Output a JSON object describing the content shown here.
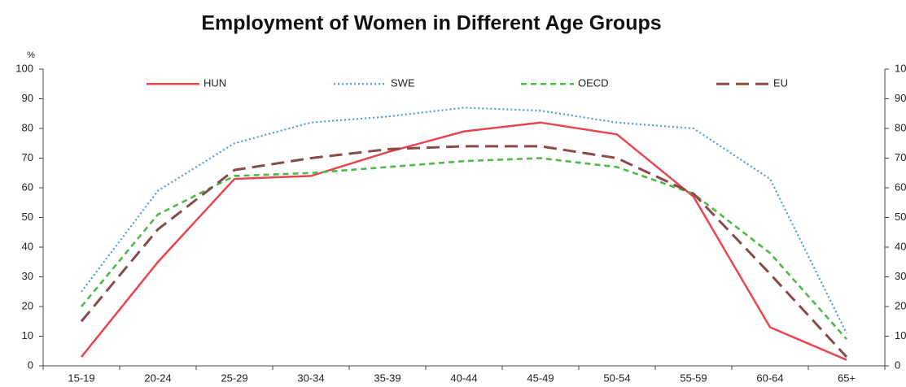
{
  "chart_data": {
    "type": "line",
    "title": "Employment of Women in Different Age Groups",
    "ylabel": "%",
    "categories": [
      "15-19",
      "20-24",
      "25-29",
      "30-34",
      "35-39",
      "40-44",
      "45-49",
      "50-54",
      "55-59",
      "60-64",
      "65+"
    ],
    "series": [
      {
        "name": "HUN",
        "color": "#e8454f",
        "style": "solid",
        "values": [
          3,
          35,
          63,
          64,
          72,
          79,
          82,
          78,
          57,
          13,
          2
        ]
      },
      {
        "name": "SWE",
        "color": "#4d9fd6",
        "style": "dotted",
        "values": [
          25,
          59,
          75,
          82,
          84,
          87,
          86,
          82,
          80,
          63,
          11
        ]
      },
      {
        "name": "OECD",
        "color": "#4cbb47",
        "style": "dashed",
        "values": [
          20,
          51,
          64,
          65,
          67,
          69,
          70,
          67,
          58,
          38,
          9
        ]
      },
      {
        "name": "EU",
        "color": "#8b4a4a",
        "style": "longdash",
        "values": [
          15,
          46,
          66,
          70,
          73,
          74,
          74,
          70,
          58,
          31,
          3
        ]
      }
    ],
    "ylim": [
      0,
      100
    ],
    "yticks": [
      0,
      10,
      20,
      30,
      40,
      50,
      60,
      70,
      80,
      90,
      100
    ],
    "legend": "top"
  }
}
